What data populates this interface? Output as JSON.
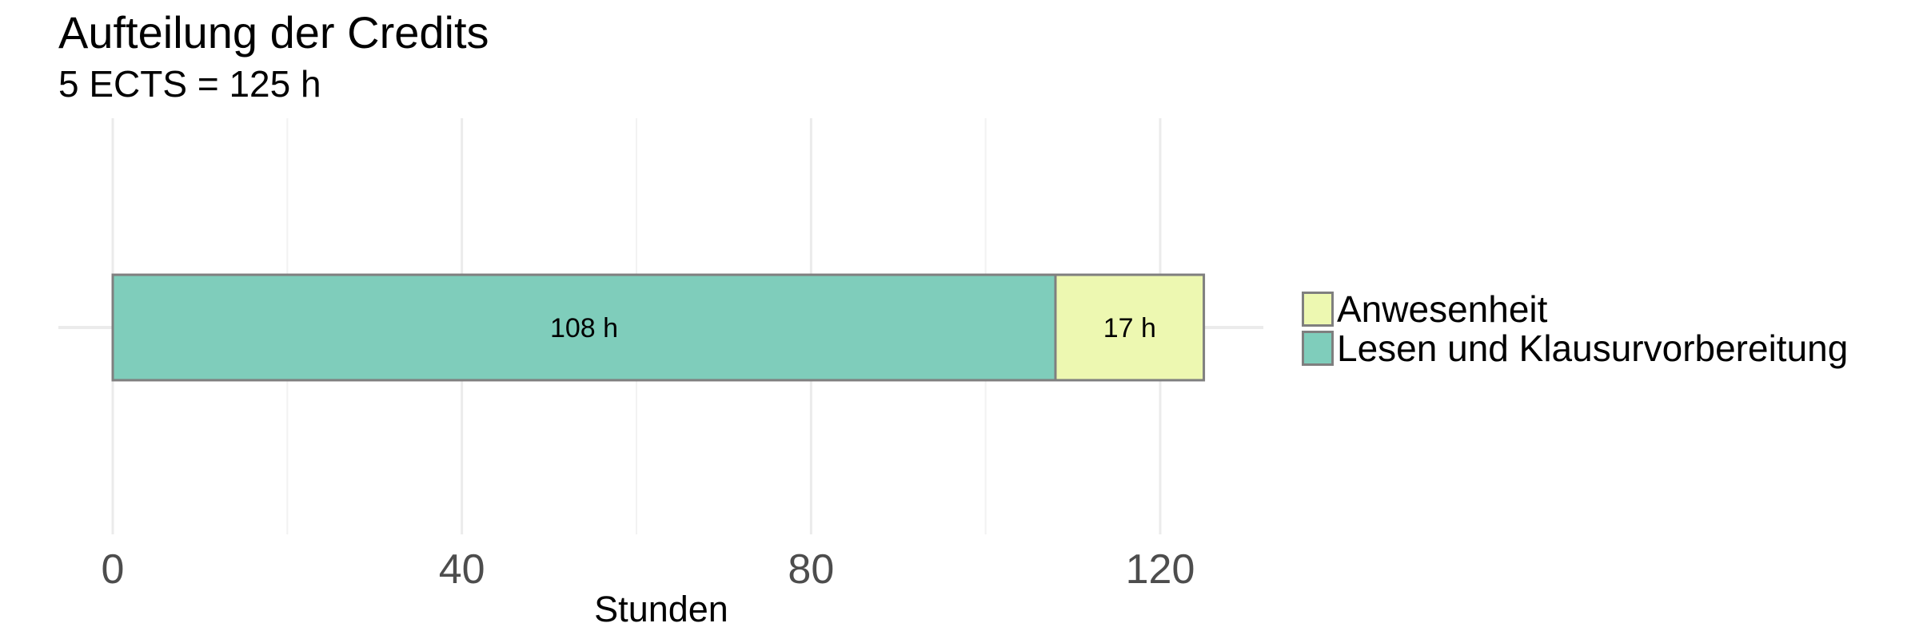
{
  "chart_data": {
    "type": "bar",
    "orientation": "horizontal",
    "stacked": true,
    "title": "Aufteilung der Credits",
    "subtitle": "5 ECTS = 125 h",
    "xlabel": "Stunden",
    "ylabel": "",
    "xlim": [
      0,
      131
    ],
    "xticks": [
      0,
      40,
      80,
      120
    ],
    "xtick_labels": [
      "0",
      "40",
      "80",
      "120"
    ],
    "grid": true,
    "legend_position": "right",
    "series": [
      {
        "name": "Lesen und Klausurvorbereitung",
        "value": 108,
        "label": "108 h",
        "color": "#7fcdbb"
      },
      {
        "name": "Anwesenheit",
        "value": 17,
        "label": "17 h",
        "color": "#edf8b1"
      }
    ],
    "legend": [
      {
        "name": "Anwesenheit",
        "color": "#edf8b1"
      },
      {
        "name": "Lesen und Klausurvorbereitung",
        "color": "#7fcdbb"
      }
    ],
    "border_color": "#7f7f7f"
  }
}
